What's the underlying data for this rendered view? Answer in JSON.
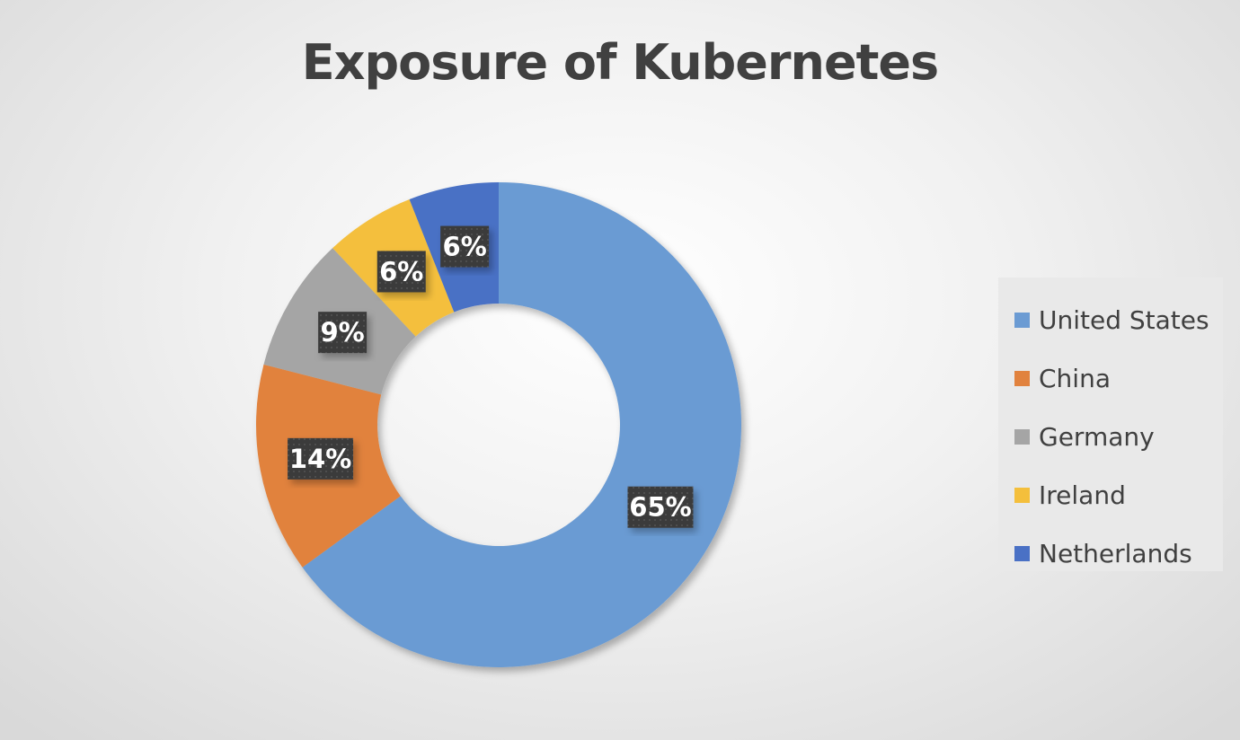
{
  "chart_data": {
    "type": "pie",
    "title": "Exposure of Kubernetes",
    "categories": [
      "United States",
      "China",
      "Germany",
      "Ireland",
      "Netherlands"
    ],
    "values": [
      65,
      14,
      9,
      6,
      6
    ],
    "data_labels": [
      "65%",
      "14%",
      "9%",
      "6%",
      "6%"
    ],
    "colors": [
      "#6b9bd3",
      "#e1823e",
      "#a5a5a5",
      "#f4bf3c",
      "#4a71c5"
    ],
    "style": "donut",
    "legend_position": "right"
  }
}
